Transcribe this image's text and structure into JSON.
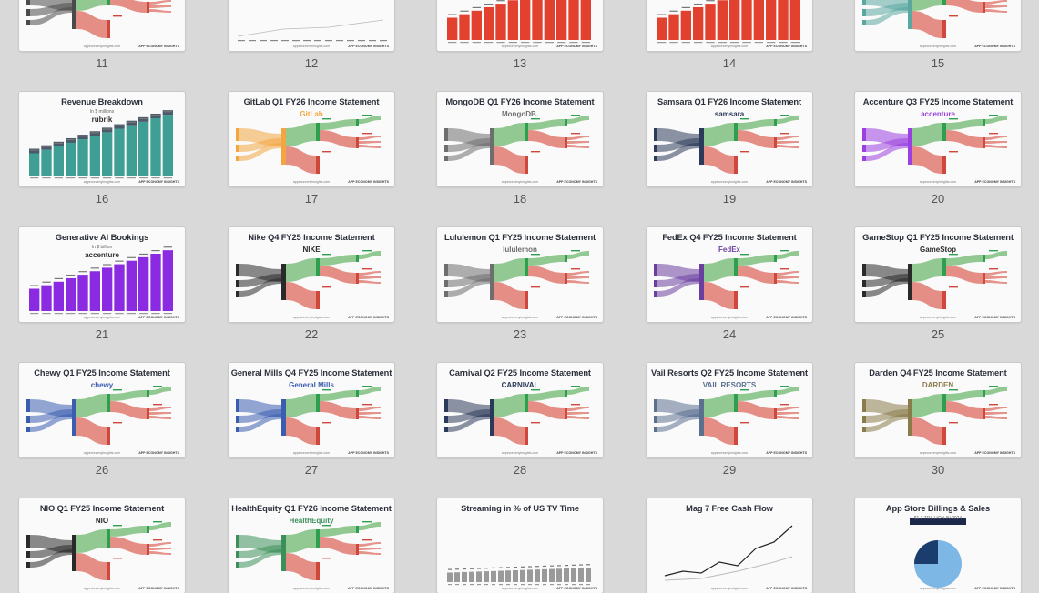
{
  "colors": {
    "background": "#d9d9d9",
    "revenue_green": "#2e9e4f",
    "cost_red": "#d0473c",
    "nvidia_green": "#76b900",
    "accenture_purple": "#a100ff"
  },
  "footer": {
    "url": "appeconomyinsights.com",
    "brand": "APP ECONOMY INSIGHTS"
  },
  "rows": [
    {
      "cards": [
        {
          "number": "11",
          "title": "",
          "theme": "sankey-dark",
          "logo": ""
        },
        {
          "number": "12",
          "title": "",
          "theme": "line-table",
          "logo": ""
        },
        {
          "number": "13",
          "title": "",
          "theme": "bars-red",
          "logo": ""
        },
        {
          "number": "14",
          "title": "",
          "theme": "bars-red",
          "logo": ""
        },
        {
          "number": "15",
          "title": "",
          "theme": "sankey-teal",
          "logo": ""
        }
      ]
    },
    {
      "cards": [
        {
          "number": "16",
          "title": "Revenue Breakdown",
          "subtitle": "In $ millions",
          "theme": "bars-teal",
          "logo": "rubrik"
        },
        {
          "number": "17",
          "title": "GitLab Q1 FY26 Income Statement",
          "theme": "sankey-orange",
          "logo": "GitLab"
        },
        {
          "number": "18",
          "title": "MongoDB Q1 FY26 Income Statement",
          "theme": "sankey-gray",
          "logo": "MongoDB."
        },
        {
          "number": "19",
          "title": "Samsara Q1 FY26 Income Statement",
          "theme": "sankey-navy",
          "logo": "samsara"
        },
        {
          "number": "20",
          "title": "Accenture Q3 FY25 Income Statement",
          "theme": "sankey-purple",
          "logo": "accenture"
        }
      ]
    },
    {
      "cards": [
        {
          "number": "21",
          "title": "Generative AI Bookings",
          "subtitle": "In $ billion",
          "theme": "bars-purple",
          "logo": "accenture"
        },
        {
          "number": "22",
          "title": "Nike Q4 FY25 Income Statement",
          "theme": "sankey-black",
          "logo": "NIKE"
        },
        {
          "number": "23",
          "title": "Lululemon Q1 FY25 Income Statement",
          "theme": "sankey-gray",
          "logo": "lululemon"
        },
        {
          "number": "24",
          "title": "FedEx Q4 FY25 Income Statement",
          "theme": "sankey-fedex",
          "logo": "FedEx"
        },
        {
          "number": "25",
          "title": "GameStop Q1 FY25 Income Statement",
          "theme": "sankey-black",
          "logo": "GameStop"
        }
      ]
    },
    {
      "cards": [
        {
          "number": "26",
          "title": "Chewy Q1 FY25 Income Statement",
          "theme": "sankey-blue",
          "logo": "chewy"
        },
        {
          "number": "27",
          "title": "General Mills Q4 FY25 Income Statement",
          "theme": "sankey-blue",
          "logo": "General Mills"
        },
        {
          "number": "28",
          "title": "Carnival Q2 FY25 Income Statement",
          "theme": "sankey-navy",
          "logo": "CARNIVAL"
        },
        {
          "number": "29",
          "title": "Vail Resorts Q2 FY25 Income Statement",
          "theme": "sankey-slate",
          "logo": "VAIL RESORTS"
        },
        {
          "number": "30",
          "title": "Darden Q4 FY25 Income Statement",
          "theme": "sankey-olive",
          "logo": "DARDEN"
        }
      ]
    },
    {
      "cards": [
        {
          "number": "",
          "title": "NIO Q1 FY25 Income Statement",
          "theme": "sankey-black",
          "logo": "NIO"
        },
        {
          "number": "",
          "title": "HealthEquity Q1 FY26 Income Statement",
          "theme": "sankey-green",
          "logo": "HealthEquity"
        },
        {
          "number": "",
          "title": "Streaming in % of US TV Time",
          "theme": "bars-gray",
          "logo": ""
        },
        {
          "number": "",
          "title": "Mag 7 Free Cash Flow",
          "theme": "line",
          "logo": ""
        },
        {
          "number": "",
          "title": "App Store Billings & Sales",
          "subtitle": "$1.3 TRILLION IN 2024",
          "theme": "pie",
          "logo": ""
        }
      ]
    }
  ]
}
